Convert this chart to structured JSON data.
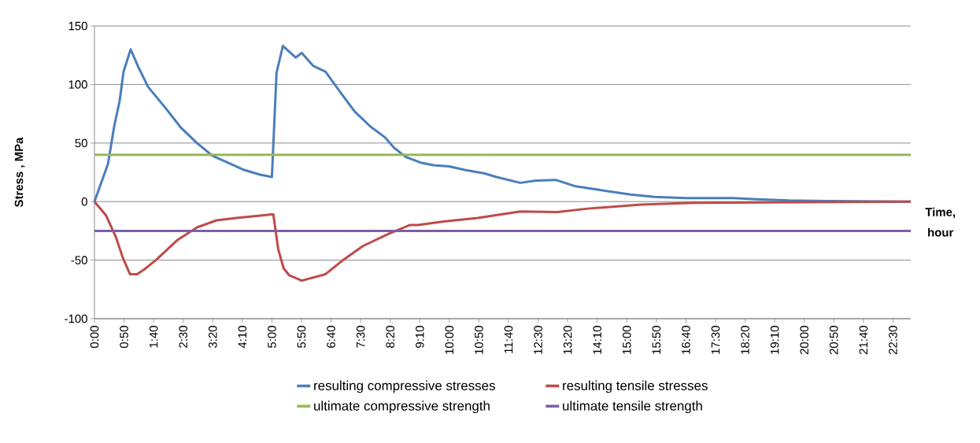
{
  "chart_data": {
    "type": "line",
    "xlabel": "Time, hour",
    "ylabel": "Stress , MPa",
    "xlim": [
      0,
      23
    ],
    "ylim": [
      -100,
      150
    ],
    "yticks": [
      150,
      100,
      50,
      0,
      -50,
      -100
    ],
    "xticks": [
      {
        "value": 0,
        "label": "0:00"
      },
      {
        "value": 0.8333,
        "label": "0:50"
      },
      {
        "value": 1.6667,
        "label": "1:40"
      },
      {
        "value": 2.5,
        "label": "2:30"
      },
      {
        "value": 3.3333,
        "label": "3:20"
      },
      {
        "value": 4.1667,
        "label": "4:10"
      },
      {
        "value": 5,
        "label": "5:00"
      },
      {
        "value": 5.8333,
        "label": "5:50"
      },
      {
        "value": 6.6667,
        "label": "6:40"
      },
      {
        "value": 7.5,
        "label": "7:30"
      },
      {
        "value": 8.3333,
        "label": "8:20"
      },
      {
        "value": 9.1667,
        "label": "9:10"
      },
      {
        "value": 10,
        "label": "10:00"
      },
      {
        "value": 10.8333,
        "label": "10:50"
      },
      {
        "value": 11.6667,
        "label": "11:40"
      },
      {
        "value": 12.5,
        "label": "12:30"
      },
      {
        "value": 13.3333,
        "label": "13:20"
      },
      {
        "value": 14.1667,
        "label": "14:10"
      },
      {
        "value": 15,
        "label": "15:00"
      },
      {
        "value": 15.8333,
        "label": "15:50"
      },
      {
        "value": 16.6667,
        "label": "16:40"
      },
      {
        "value": 17.5,
        "label": "17:30"
      },
      {
        "value": 18.3333,
        "label": "18:20"
      },
      {
        "value": 19.1667,
        "label": "19:10"
      },
      {
        "value": 20,
        "label": "20:00"
      },
      {
        "value": 20.8333,
        "label": "20:50"
      },
      {
        "value": 21.6667,
        "label": "21:40"
      },
      {
        "value": 22.5,
        "label": "22:30"
      }
    ],
    "grid": "y",
    "legend": "bottom",
    "marker": "none",
    "line_style": "solid",
    "series": [
      {
        "name": "resulting compressive stresses",
        "color": "#4a7ebb",
        "x": [
          0,
          0.38,
          0.56,
          0.71,
          0.82,
          1.02,
          1.22,
          1.51,
          2.0,
          2.44,
          2.89,
          3.33,
          3.78,
          4.22,
          4.67,
          5.0,
          5.13,
          5.31,
          5.67,
          5.84,
          6.16,
          6.51,
          6.89,
          7.33,
          7.78,
          8.18,
          8.44,
          8.78,
          9.22,
          9.56,
          10.0,
          10.44,
          11.0,
          11.33,
          12.0,
          12.44,
          13.0,
          13.56,
          14.22,
          15.11,
          15.78,
          16.67,
          17.33,
          18.0,
          18.67,
          19.56,
          20.67,
          23.0
        ],
        "values": [
          0,
          32,
          65,
          86,
          111,
          130,
          116,
          98,
          80,
          63,
          50,
          39,
          33,
          27,
          23,
          21,
          110,
          133,
          123,
          127,
          116,
          111,
          95,
          77,
          64,
          55,
          46,
          38,
          33,
          31,
          30,
          27,
          24,
          21,
          16,
          18,
          18.5,
          13,
          10,
          6,
          4,
          3,
          3,
          3,
          2,
          1,
          0.5,
          0
        ]
      },
      {
        "name": "resulting tensile stresses",
        "color": "#be4b48",
        "x": [
          0,
          0.33,
          0.6,
          0.8,
          1.0,
          1.2,
          1.4,
          1.73,
          2.33,
          2.89,
          3.44,
          4.0,
          4.67,
          5.0,
          5.04,
          5.18,
          5.33,
          5.49,
          5.84,
          6.51,
          6.96,
          7.56,
          8.29,
          8.89,
          9.11,
          9.84,
          10.8,
          12.0,
          13.04,
          13.9,
          15.4,
          16.9,
          23.0
        ],
        "values": [
          0,
          -12,
          -30,
          -48,
          -62,
          -62,
          -58,
          -50,
          -33,
          -22,
          -16,
          -14,
          -12,
          -11,
          -11,
          -41,
          -57,
          -63,
          -67.5,
          -62,
          -51,
          -38,
          -27.5,
          -20,
          -20,
          -17,
          -14,
          -8.5,
          -9,
          -6,
          -2.5,
          -1,
          0
        ]
      },
      {
        "name": "ultimate compressive strength",
        "color": "#98b954",
        "x": [
          0,
          23
        ],
        "values": [
          40,
          40
        ]
      },
      {
        "name": "ultimate tensile strength",
        "color": "#7d60a0",
        "x": [
          0,
          23
        ],
        "values": [
          -25,
          -25
        ]
      }
    ]
  }
}
